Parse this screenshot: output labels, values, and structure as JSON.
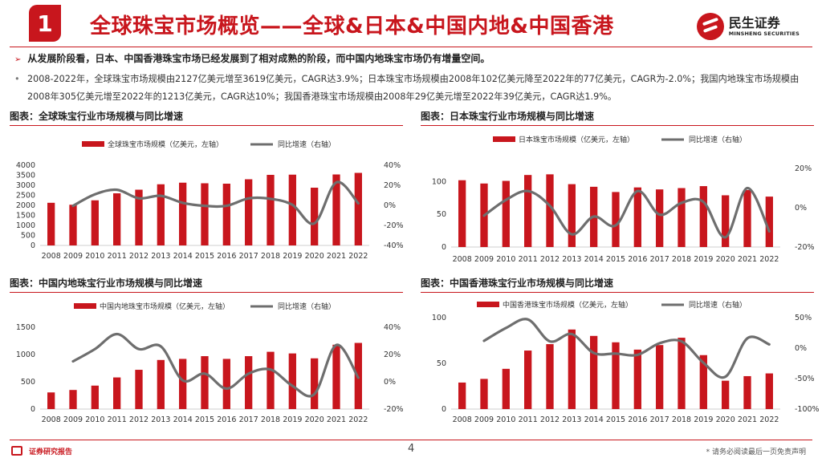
{
  "header": {
    "section_number": "1",
    "title": "全球珠宝市场概览——全球&日本&中国内地&中国香港",
    "logo_cn": "民生证券",
    "logo_en": "MINSHENG SECURITIES"
  },
  "bullets": {
    "b1_mark": "➢",
    "b1": "从发展阶段看，日本、中国香港珠宝市场已经发展到了相对成熟的阶段，而中国内地珠宝市场仍有增量空间。",
    "b2_mark": "•",
    "b2": "2008-2022年，全球珠宝市场规模由2127亿美元增至3619亿美元，CAGR达3.9%；日本珠宝市场规模由2008年102亿美元降至2022年的77亿美元，CAGR为-2.0%；我国内地珠宝市场规模由2008年305亿美元增至2022年的1213亿美元，CAGR达10%；我国香港珠宝市场规模由2008年29亿美元增至2022年39亿美元，CAGR达1.9%。"
  },
  "figure_titles": [
    "图表：全球珠宝行业市场规模与同比增速",
    "图表：日本珠宝行业市场规模与同比增速",
    "图表：中国内地珠宝行业市场规模与同比增速",
    "图表：中国香港珠宝行业市场规模与同比增速"
  ],
  "colors": {
    "bar": "#c8161d",
    "line": "#6e6e6e",
    "accent": "#c8161d"
  },
  "chart_data": [
    {
      "type": "bar",
      "categories": [
        "2008",
        "2009",
        "2010",
        "2011",
        "2012",
        "2013",
        "2014",
        "2015",
        "2016",
        "2017",
        "2018",
        "2019",
        "2020",
        "2021",
        "2022"
      ],
      "series": [
        {
          "name": "全球珠宝市场规模（亿美元，左轴）",
          "type": "bar",
          "axis": "left",
          "values": [
            2127,
            2030,
            2250,
            2600,
            2780,
            3050,
            3130,
            3100,
            3080,
            3300,
            3520,
            3530,
            2880,
            3540,
            3619
          ]
        },
        {
          "name": "同比增速（右轴）",
          "type": "line",
          "axis": "right",
          "values": [
            null,
            -0.5,
            11,
            15.5,
            7,
            9.5,
            2.5,
            -0.5,
            -0.5,
            7,
            6.5,
            0.5,
            -18,
            23,
            2
          ]
        }
      ],
      "y_left": {
        "min": 0,
        "max": 4000,
        "ticks": [
          "0",
          "500",
          "1000",
          "1500",
          "2000",
          "2500",
          "3000",
          "3500",
          "4000"
        ]
      },
      "y_right": {
        "min": -40,
        "max": 40,
        "ticks": [
          "-40%",
          "-20%",
          "0%",
          "20%",
          "40%"
        ]
      }
    },
    {
      "type": "bar",
      "categories": [
        "2008",
        "2009",
        "2010",
        "2011",
        "2012",
        "2013",
        "2014",
        "2015",
        "2016",
        "2017",
        "2018",
        "2019",
        "2020",
        "2021",
        "2022"
      ],
      "series": [
        {
          "name": "日本珠宝市场规模（亿美元，左轴）",
          "type": "bar",
          "axis": "left",
          "values": [
            102,
            97,
            101,
            110,
            111,
            96,
            92,
            84,
            91,
            88,
            90,
            93,
            79,
            87,
            77
          ]
        },
        {
          "name": "同比增速（右轴）",
          "type": "line",
          "axis": "right",
          "values": [
            null,
            -4,
            4,
            8.5,
            1,
            -13.5,
            -4.5,
            -9,
            8.5,
            -3.5,
            2.5,
            3,
            -15,
            10,
            -12
          ]
        }
      ],
      "y_left": {
        "min": 0,
        "max": 120,
        "ticks": [
          "0",
          "50",
          "100"
        ]
      },
      "y_right": {
        "min": -20,
        "max": 20,
        "ticks": [
          "-20%",
          "0%",
          "20%"
        ]
      }
    },
    {
      "type": "bar",
      "categories": [
        "2008",
        "2009",
        "2010",
        "2011",
        "2012",
        "2013",
        "2014",
        "2015",
        "2016",
        "2017",
        "2018",
        "2019",
        "2020",
        "2021",
        "2022"
      ],
      "series": [
        {
          "name": "中国内地珠宝市场规模（亿美元，左轴）",
          "type": "bar",
          "axis": "left",
          "values": [
            305,
            350,
            430,
            580,
            720,
            900,
            920,
            970,
            920,
            970,
            1050,
            1020,
            930,
            1180,
            1213
          ]
        },
        {
          "name": "同比增速（右轴）",
          "type": "line",
          "axis": "right",
          "values": [
            null,
            15,
            24,
            35,
            24,
            26,
            1,
            6,
            -5,
            6,
            9,
            -3,
            -9,
            27,
            3
          ]
        }
      ],
      "y_left": {
        "min": 0,
        "max": 1500,
        "ticks": [
          "0",
          "500",
          "1000",
          "1500"
        ]
      },
      "y_right": {
        "min": -20,
        "max": 40,
        "ticks": [
          "-20%",
          "0%",
          "20%",
          "40%"
        ]
      }
    },
    {
      "type": "bar",
      "categories": [
        "2008",
        "2009",
        "2010",
        "2011",
        "2012",
        "2013",
        "2014",
        "2015",
        "2016",
        "2017",
        "2018",
        "2019",
        "2020",
        "2021",
        "2022"
      ],
      "series": [
        {
          "name": "中国香港珠宝市场规模（亿美元，左轴）",
          "type": "bar",
          "axis": "left",
          "values": [
            29,
            33,
            44,
            64,
            71,
            87,
            80,
            73,
            65,
            70,
            78,
            59,
            31,
            36,
            39
          ]
        },
        {
          "name": "同比增速（右轴）",
          "type": "line",
          "axis": "right",
          "values": [
            null,
            12,
            33,
            47,
            11,
            23,
            -8,
            -9,
            -11,
            8,
            11,
            -24,
            -47,
            16,
            6
          ]
        }
      ],
      "y_left": {
        "min": 0,
        "max": 100,
        "ticks": [
          "0",
          "50",
          "100"
        ]
      },
      "y_right": {
        "min": -100,
        "max": 50,
        "ticks": [
          "-100%",
          "-50%",
          "0%",
          "50%"
        ]
      }
    }
  ],
  "footer": {
    "label": "证券研究报告",
    "page": "4",
    "note": "* 请务必阅读最后一页免责声明"
  }
}
